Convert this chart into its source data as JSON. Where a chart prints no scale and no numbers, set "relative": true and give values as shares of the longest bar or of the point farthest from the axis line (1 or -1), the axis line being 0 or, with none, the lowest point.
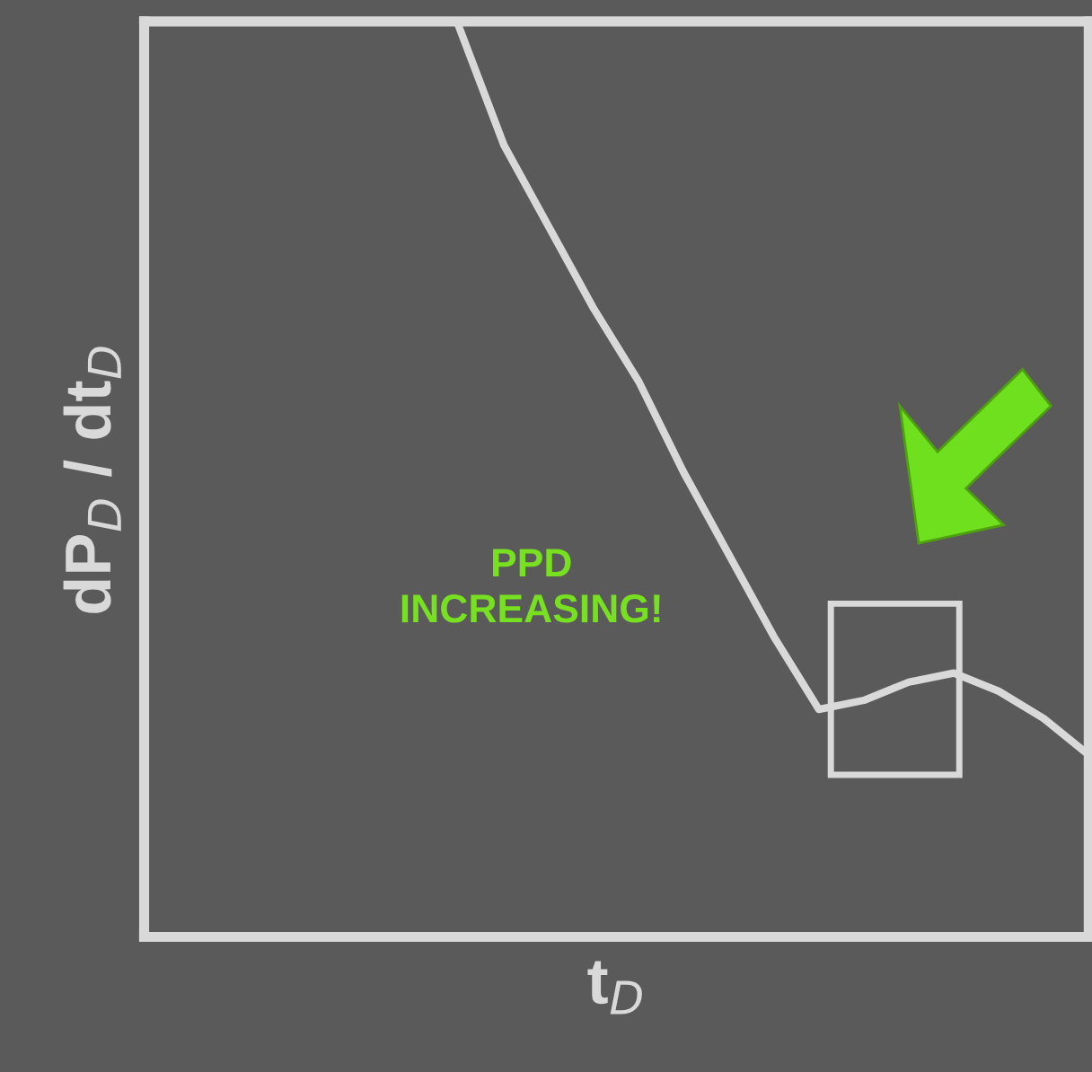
{
  "chart_data": {
    "type": "line",
    "relative": true,
    "xlabel": "t$_{D}$",
    "ylabel": "dP$_{D}$ / dt$_{D}$",
    "categories": [
      null,
      null,
      null,
      null,
      null,
      null,
      null,
      null,
      null,
      null,
      null,
      null,
      null,
      null,
      null,
      null,
      null,
      null,
      null,
      null,
      null,
      null
    ],
    "series": [
      {
        "color": "#d9d9d9",
        "values": [
          null,
          null,
          null,
          null,
          null,
          null,
          null,
          1.0,
          0.87,
          0.78,
          0.69,
          0.61,
          0.51,
          0.42,
          0.33,
          0.25,
          0.26,
          0.28,
          0.29,
          0.27,
          0.24,
          0.2
        ]
      }
    ],
    "annotations": [
      "PPD\nINCREASING!"
    ],
    "legend": false,
    "marker": "none",
    "line_style": "solid"
  }
}
